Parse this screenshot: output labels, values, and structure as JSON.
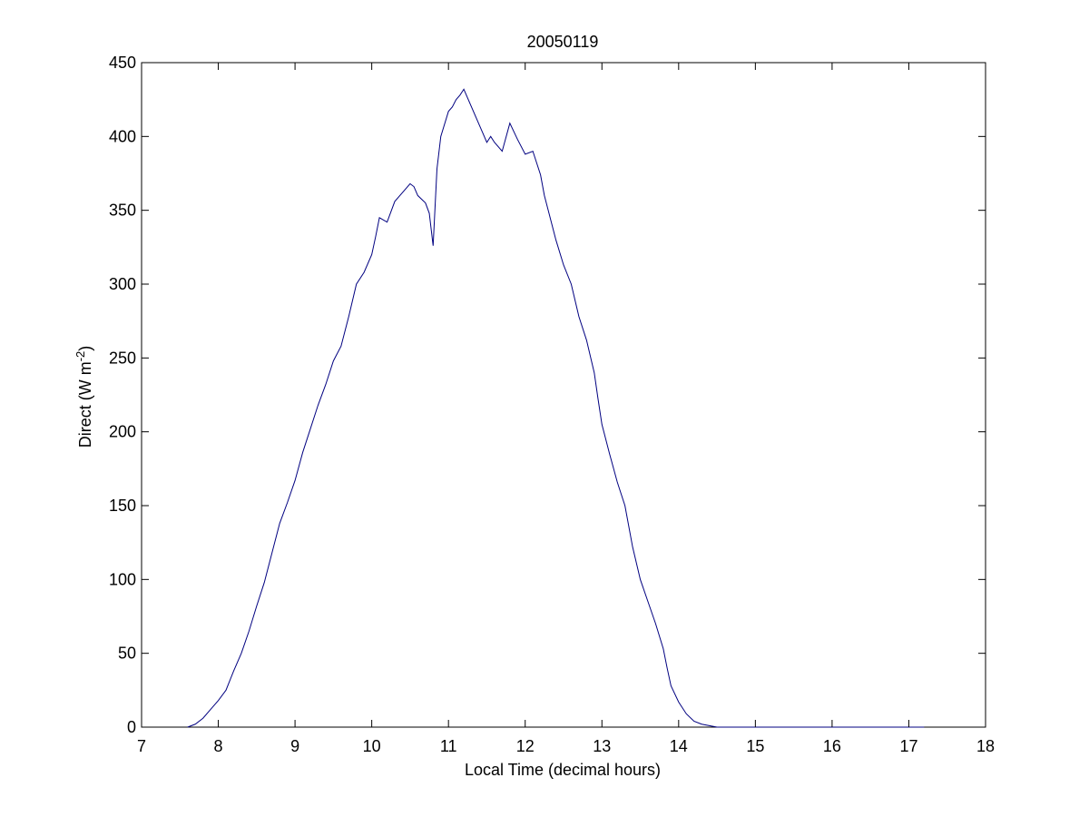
{
  "chart_data": {
    "type": "line",
    "title": "20050119",
    "xlabel": "Local Time (decimal hours)",
    "ylabel_main": "Direct (W m",
    "ylabel_sup": "-2",
    "ylabel_close": ")",
    "xlim": [
      7,
      18
    ],
    "ylim": [
      0,
      450
    ],
    "xticks": [
      "7",
      "8",
      "9",
      "10",
      "11",
      "12",
      "13",
      "14",
      "15",
      "16",
      "17",
      "18"
    ],
    "yticks": [
      "0",
      "50",
      "100",
      "150",
      "200",
      "250",
      "300",
      "350",
      "400",
      "450"
    ],
    "grid": false,
    "series_color": "#000080",
    "series": [
      {
        "x": [
          7.6,
          7.7,
          7.8,
          7.9,
          8.0,
          8.1,
          8.2,
          8.3,
          8.4,
          8.5,
          8.6,
          8.7,
          8.8,
          8.9,
          9.0,
          9.1,
          9.2,
          9.3,
          9.4,
          9.5,
          9.6,
          9.7,
          9.8,
          9.9,
          10.0,
          10.05,
          10.1,
          10.2,
          10.3,
          10.4,
          10.5,
          10.55,
          10.6,
          10.7,
          10.75,
          10.8,
          10.85,
          10.9,
          11.0,
          11.05,
          11.1,
          11.15,
          11.2,
          11.3,
          11.4,
          11.45,
          11.5,
          11.55,
          11.6,
          11.7,
          11.8,
          11.9,
          12.0,
          12.1,
          12.15,
          12.2,
          12.25,
          12.3,
          12.4,
          12.5,
          12.6,
          12.7,
          12.8,
          12.9,
          12.95,
          13.0,
          13.1,
          13.2,
          13.3,
          13.4,
          13.5,
          13.6,
          13.7,
          13.8,
          13.85,
          13.9,
          14.0,
          14.1,
          14.2,
          14.3,
          14.4,
          14.5,
          14.6,
          14.7,
          14.8,
          14.9,
          15.0,
          15.1,
          15.2,
          15.3,
          15.4,
          15.5,
          15.6,
          15.7,
          15.8,
          15.9,
          16.0,
          16.1,
          16.2,
          16.3,
          16.4,
          16.5,
          16.6,
          16.7,
          16.8,
          16.9,
          17.0,
          17.1,
          17.2
        ],
        "y": [
          0,
          2,
          6,
          12,
          18,
          25,
          38,
          50,
          65,
          82,
          98,
          118,
          138,
          152,
          167,
          186,
          202,
          218,
          232,
          248,
          258,
          278,
          300,
          308,
          320,
          332,
          345,
          342,
          356,
          362,
          368,
          366,
          360,
          355,
          348,
          326,
          378,
          400,
          417,
          420,
          425,
          428,
          432,
          420,
          408,
          402,
          396,
          400,
          396,
          390,
          409,
          398,
          388,
          390,
          382,
          374,
          360,
          350,
          330,
          313,
          300,
          278,
          262,
          240,
          222,
          205,
          185,
          166,
          150,
          122,
          100,
          85,
          70,
          53,
          40,
          28,
          17,
          9,
          4,
          2,
          1,
          0,
          0,
          0,
          0,
          0,
          0,
          0,
          0,
          0,
          0,
          0,
          0,
          0,
          0,
          0,
          0,
          0,
          0,
          0,
          0,
          0,
          0,
          0,
          0,
          0,
          0,
          0,
          0
        ],
        "x_note_free": true
      }
    ]
  }
}
